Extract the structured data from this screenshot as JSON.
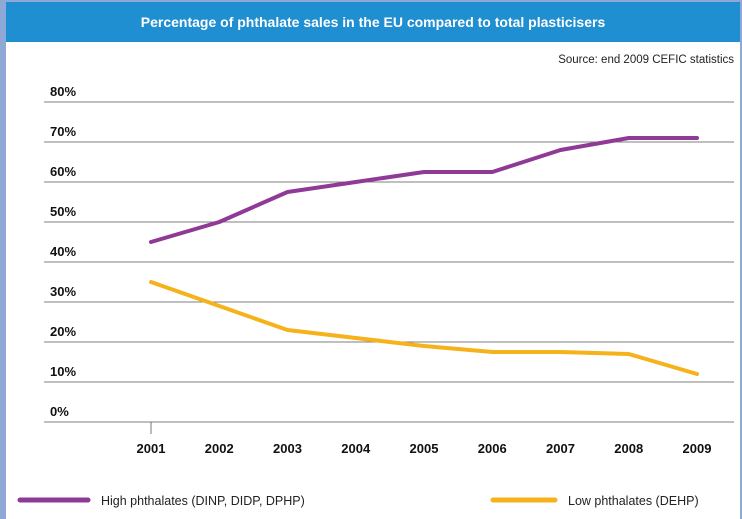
{
  "chart_data": {
    "type": "line",
    "title": "Percentage of phthalate sales in the EU compared to total plasticisers",
    "source": "Source: end 2009 CEFIC statistics",
    "x": [
      "2001",
      "2002",
      "2003",
      "2004",
      "2005",
      "2006",
      "2007",
      "2008",
      "2009"
    ],
    "yticks": [
      "0%",
      "10%",
      "20%",
      "30%",
      "40%",
      "50%",
      "60%",
      "70%",
      "80%"
    ],
    "ylim": [
      0,
      80
    ],
    "grid": "horizontal",
    "legend_position": "bottom",
    "series": [
      {
        "name": "High phthalates (DINP, DIDP, DPHP)",
        "color": "#8e3a96",
        "points": [
          [
            2001,
            45
          ],
          [
            2002,
            50
          ],
          [
            2003,
            57.5
          ],
          [
            2004,
            60
          ],
          [
            2005,
            62.5
          ],
          [
            2006,
            62.5
          ],
          [
            2007,
            68
          ],
          [
            2007.5,
            69.5
          ],
          [
            2008,
            71
          ],
          [
            2009,
            71
          ]
        ]
      },
      {
        "name": "Low phthalates (DEHP)",
        "color": "#f5b21a",
        "points": [
          [
            2001,
            35
          ],
          [
            2002,
            29
          ],
          [
            2003,
            23
          ],
          [
            2004,
            21
          ],
          [
            2005,
            19
          ],
          [
            2006,
            17.5
          ],
          [
            2007,
            17.5
          ],
          [
            2008,
            17
          ],
          [
            2009,
            12
          ]
        ]
      }
    ]
  }
}
